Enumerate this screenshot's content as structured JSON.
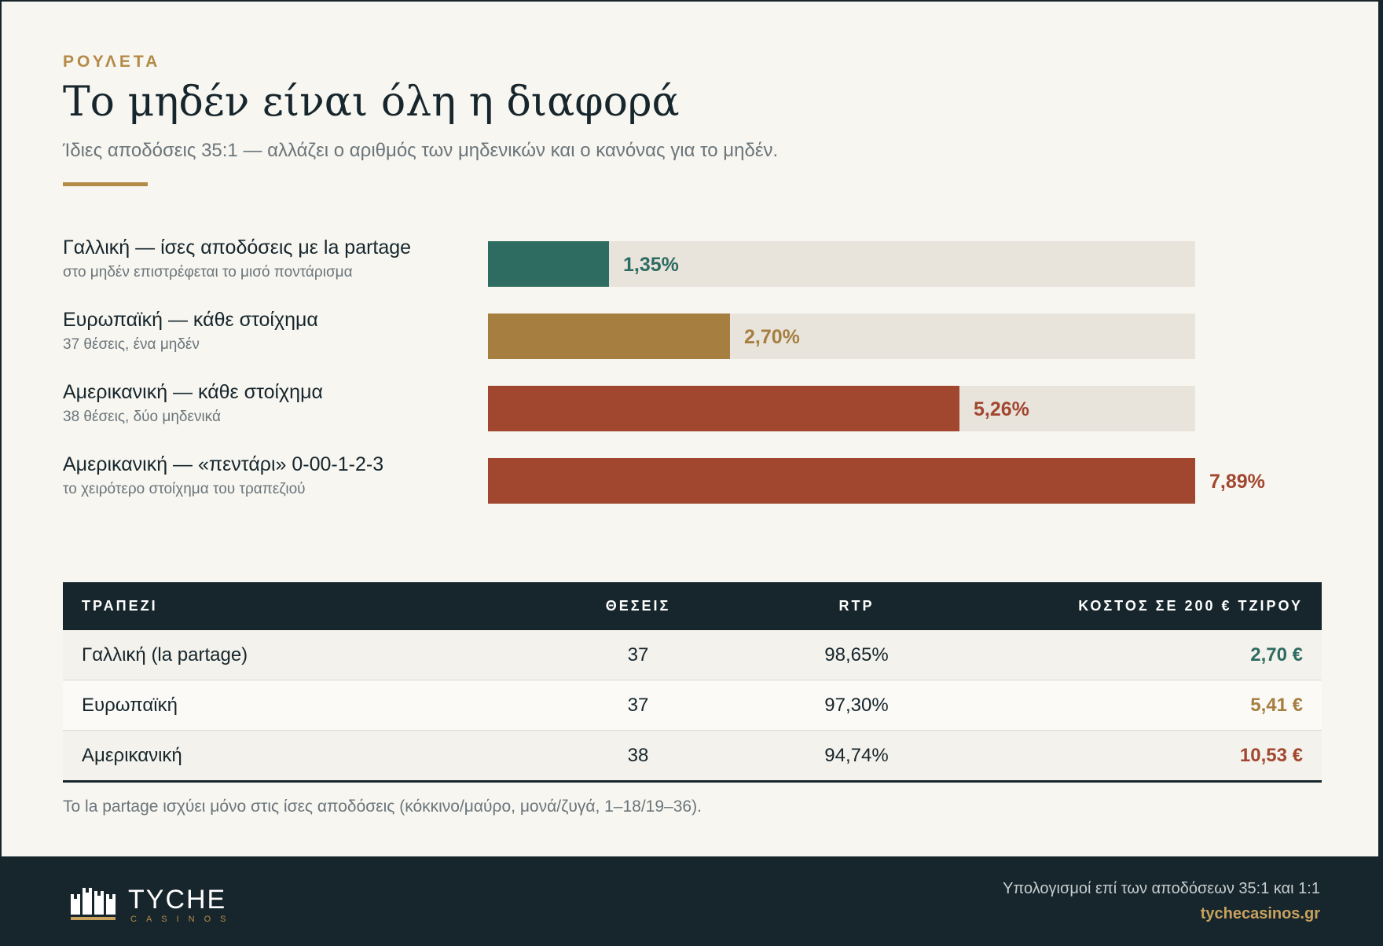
{
  "header": {
    "eyebrow": "ΡΟΥΛΕΤΑ",
    "title": "Το μηδέν είναι όλη η διαφορά",
    "subtitle": "Ίδιες αποδόσεις 35:1 — αλλάζει ο αριθμός των μηδενικών και ο κανόνας για το μηδέν."
  },
  "colors": {
    "accent_gold": "#a67f40",
    "green": "#2e6b61",
    "red": "#a2472f",
    "track": "#e8e4dc",
    "dark": "#16262c"
  },
  "chart_data": {
    "type": "bar",
    "orientation": "horizontal",
    "categories": [
      "Γαλλική — ίσες αποδόσεις με la partage",
      "Ευρωπαϊκή — κάθε στοίχημα",
      "Αμερικανική — κάθε στοίχημα",
      "Αμερικανική — «πεντάρι» 0-00-1-2-3"
    ],
    "sublabels": [
      "στο μηδέν επιστρέφεται το μισό ποντάρισμα",
      "37 θέσεις, ένα μηδέν",
      "38 θέσεις, δύο μηδενικά",
      "το χειρότερο στοίχημα του τραπεζιού"
    ],
    "values": [
      1.35,
      2.7,
      5.26,
      7.89
    ],
    "value_labels": [
      "1,35%",
      "2,70%",
      "5,26%",
      "7,89%"
    ],
    "bar_colors": [
      "#2e6b61",
      "#a67f40",
      "#a2472f",
      "#a2472f"
    ],
    "xlim": [
      0,
      7.89
    ],
    "grid": false,
    "legend": "none"
  },
  "table": {
    "headers": [
      "ΤΡΑΠΕΖΙ",
      "ΘΕΣΕΙΣ",
      "RTP",
      "ΚΟΣΤΟΣ ΣΕ 200 € ΤΖΙΡΟΥ"
    ],
    "rows": [
      {
        "name": "Γαλλική (la partage)",
        "seats": "37",
        "rtp": "98,65%",
        "cost": "2,70 €",
        "cost_color": "#2e6b61"
      },
      {
        "name": "Ευρωπαϊκή",
        "seats": "37",
        "rtp": "97,30%",
        "cost": "5,41 €",
        "cost_color": "#a67f40"
      },
      {
        "name": "Αμερικανική",
        "seats": "38",
        "rtp": "94,74%",
        "cost": "10,53 €",
        "cost_color": "#a2472f"
      }
    ]
  },
  "footnote": "Το la partage ισχύει μόνο στις ίσες αποδόσεις (κόκκινο/μαύρο, μονά/ζυγά, 1–18/19–36).",
  "footer": {
    "brand": "TYCHE",
    "brand_sub": "CASINOS",
    "note": "Υπολογισμοί επί των αποδόσεων 35:1 και 1:1",
    "url": "tychecasinos.gr"
  }
}
